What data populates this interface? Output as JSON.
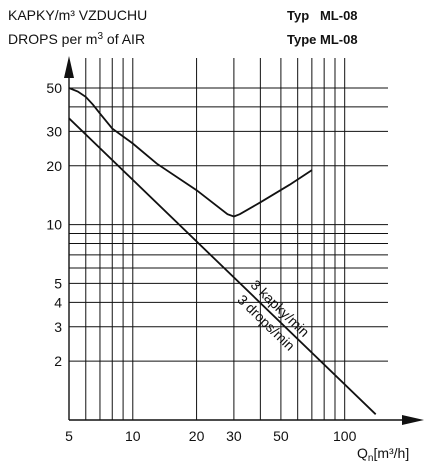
{
  "header": {
    "y_label_cz": "KAPKY/m³ VZDUCHU",
    "y_label_en_prefix": "DROPS per m",
    "y_label_en_sup": "3",
    "y_label_en_suffix": " of AIR",
    "type_cz": "Typ   ML-08",
    "type_en": "Type ML-08"
  },
  "chart_data": {
    "type": "line",
    "xscale": "log",
    "yscale": "log",
    "xlim": [
      5,
      150
    ],
    "ylim": [
      1,
      50
    ],
    "grid": true,
    "xlabel": "Q",
    "xlabel_sub": "n",
    "xlabel_unit": "[m³/h]",
    "ylabel": "KAPKY/m³ VZDUCHU / DROPS per m³ of AIR",
    "x_ticks": [
      5,
      10,
      20,
      30,
      50,
      100
    ],
    "x_ticklabels": [
      "5",
      "10",
      "20",
      "30",
      "50",
      "100"
    ],
    "y_ticks": [
      2,
      3,
      4,
      5,
      10,
      20,
      30,
      50
    ],
    "y_ticklabels": [
      "2",
      "3",
      "4",
      "5",
      "10",
      "20",
      "30",
      "50"
    ],
    "series": [
      {
        "x": [
          5,
          5.5,
          6,
          6.5,
          7,
          8,
          10,
          13,
          20,
          28,
          30,
          32,
          40,
          55,
          70
        ],
        "y": [
          50,
          48,
          45,
          41,
          37,
          31,
          26,
          20.5,
          15,
          11.3,
          11,
          11.3,
          13,
          16,
          19
        ]
      },
      {
        "x": [
          5,
          140
        ],
        "y": [
          35,
          1.07
        ],
        "labels": [
          "3 kapky/min",
          "3 drops/min"
        ]
      }
    ]
  }
}
